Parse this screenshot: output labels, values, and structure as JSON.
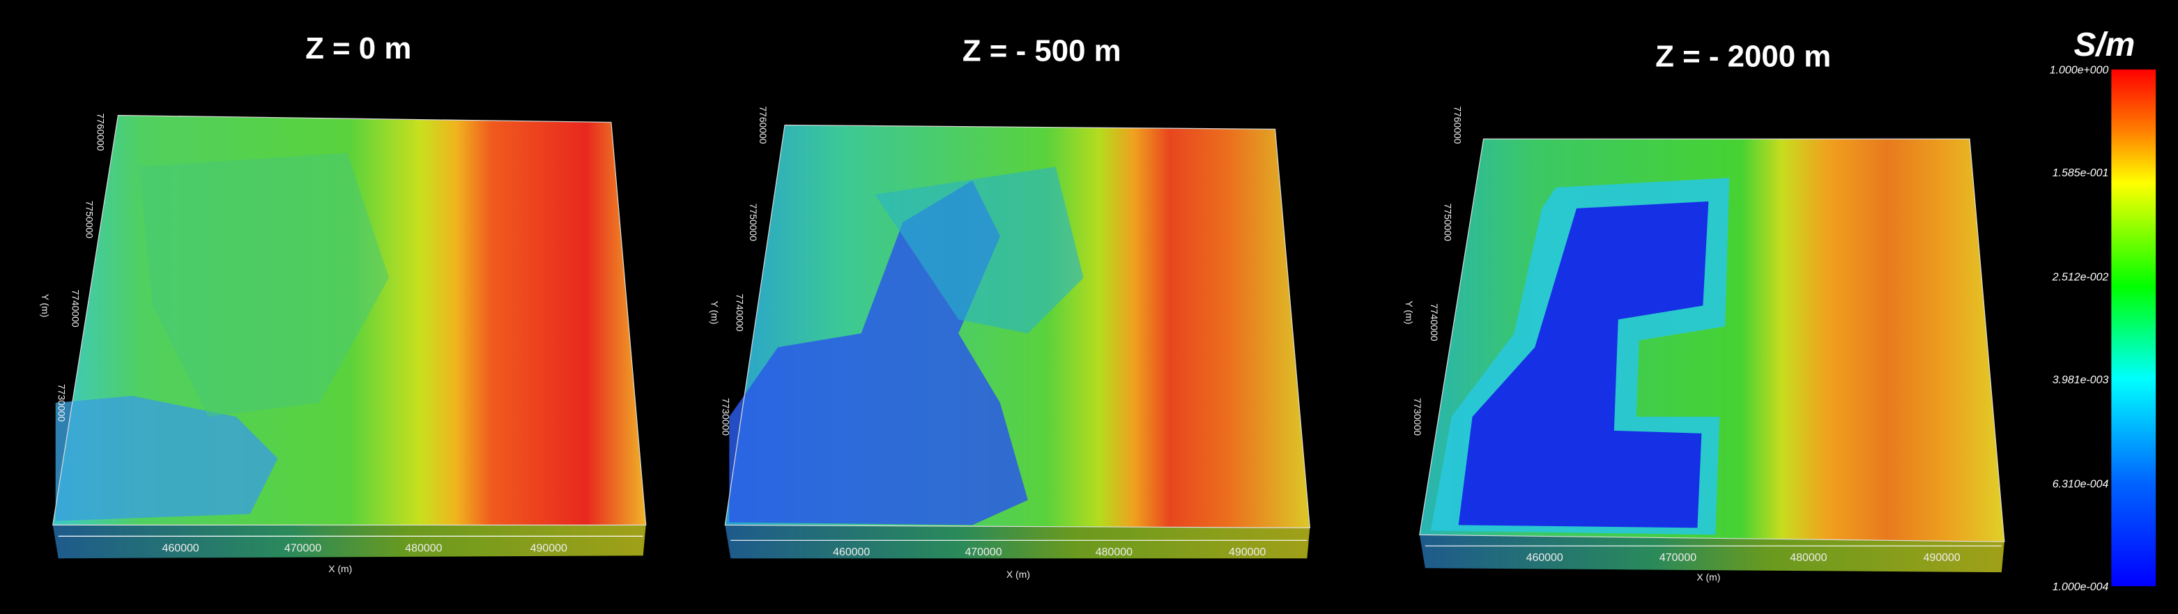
{
  "panels": [
    {
      "title": "Z = 0 m",
      "x_axis_label": "X (m)",
      "y_axis_label": "Y (m)",
      "x_ticks": [
        "460000",
        "470000",
        "480000",
        "490000"
      ],
      "y_ticks": [
        "7760000",
        "7750000",
        "7740000",
        "7730000"
      ]
    },
    {
      "title": "Z = - 500 m",
      "x_axis_label": "X (m)",
      "y_axis_label": "Y (m)",
      "x_ticks": [
        "460000",
        "470000",
        "480000",
        "490000"
      ],
      "y_ticks": [
        "7760000",
        "7750000",
        "7740000",
        "7730000"
      ]
    },
    {
      "title": "Z = - 2000 m",
      "x_axis_label": "X (m)",
      "y_axis_label": "Y (m)",
      "x_ticks": [
        "460000",
        "470000",
        "480000",
        "490000"
      ],
      "y_ticks": [
        "7760000",
        "7750000",
        "7740000",
        "7730000"
      ]
    }
  ],
  "colorbar": {
    "unit": "S/m",
    "ticks": [
      "1.000e+000",
      "1.585e-001",
      "2.512e-002",
      "3.981e-003",
      "6.310e-004",
      "1.000e-004"
    ]
  }
}
